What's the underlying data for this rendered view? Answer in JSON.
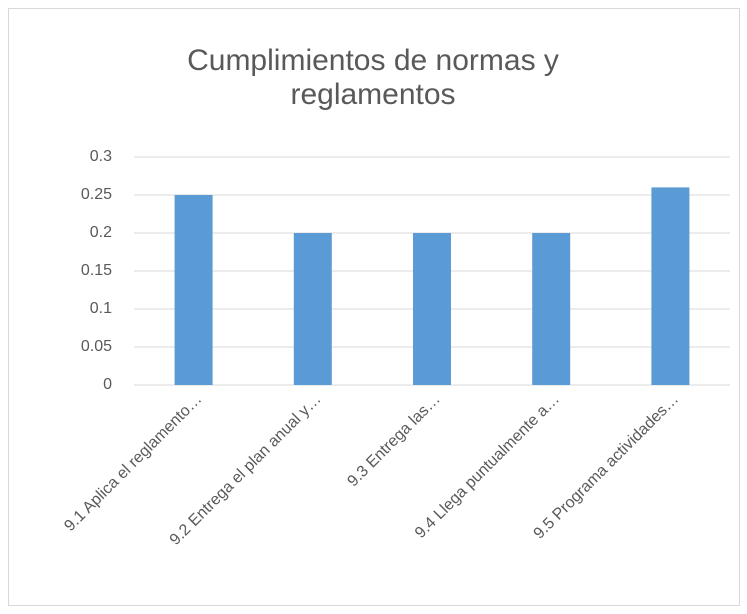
{
  "chart_data": {
    "type": "bar",
    "title": "Cumplimientos de normas y reglamentos",
    "categories": [
      "9.1 Aplica el reglamento…",
      "9.2 Entrega el plan anual y…",
      "9.3 Entrega las…",
      "9.4 Llega puntualmente a…",
      "9.5 Programa actividades…"
    ],
    "values": [
      0.25,
      0.2,
      0.2,
      0.2,
      0.26
    ],
    "color": "#5b9bd5",
    "ylim": [
      0,
      0.3
    ],
    "yticks": [
      0,
      0.05,
      0.1,
      0.15,
      0.2,
      0.25,
      0.3
    ],
    "grid": true
  }
}
